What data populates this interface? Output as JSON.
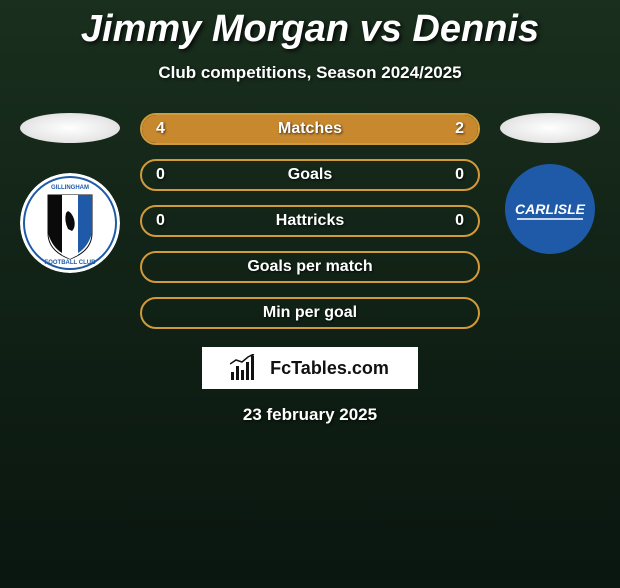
{
  "title": "Jimmy Morgan vs Dennis",
  "subtitle": "Club competitions, Season 2024/2025",
  "date": "23 february 2025",
  "footer_brand": "FcTables.com",
  "colors": {
    "border": "#d19a3a",
    "fill_left": "#c8882e",
    "fill_right": "#c8882e",
    "bg_green": "#1a2f1e",
    "text": "#ffffff"
  },
  "left_club": {
    "name": "Gillingham",
    "badge_bg": "#ffffff",
    "stripe1": "#0a0a0a",
    "stripe2": "#1e5aa8"
  },
  "right_club": {
    "name": "Carlisle",
    "badge_bg": "#1e5aa8",
    "text_color": "#ffffff"
  },
  "stats": [
    {
      "label": "Matches",
      "left_val": "4",
      "right_val": "2",
      "left_pct": 66.7,
      "right_pct": 33.3,
      "show_left": true,
      "show_right": true
    },
    {
      "label": "Goals",
      "left_val": "0",
      "right_val": "0",
      "left_pct": 0,
      "right_pct": 0,
      "show_left": true,
      "show_right": true
    },
    {
      "label": "Hattricks",
      "left_val": "0",
      "right_val": "0",
      "left_pct": 0,
      "right_pct": 0,
      "show_left": true,
      "show_right": true
    },
    {
      "label": "Goals per match",
      "left_val": "",
      "right_val": "",
      "left_pct": 0,
      "right_pct": 0,
      "show_left": false,
      "show_right": false
    },
    {
      "label": "Min per goal",
      "left_val": "",
      "right_val": "",
      "left_pct": 0,
      "right_pct": 0,
      "show_left": false,
      "show_right": false
    }
  ]
}
